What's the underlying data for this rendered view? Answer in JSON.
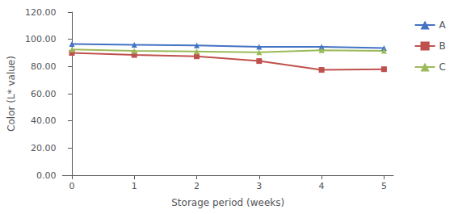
{
  "chart_data": {
    "type": "line",
    "xlabel": "Storage period (weeks)",
    "ylabel": "Color (L* value)",
    "x": [
      0,
      1,
      2,
      3,
      4,
      5
    ],
    "series": [
      {
        "name": "A",
        "color": "#4472C4",
        "marker": "triangle",
        "values": [
          96.5,
          96.0,
          95.5,
          94.5,
          94.5,
          93.5
        ]
      },
      {
        "name": "B",
        "color": "#C0504D",
        "marker": "square",
        "values": [
          90.0,
          88.5,
          87.5,
          84.0,
          77.5,
          78.0
        ]
      },
      {
        "name": "C",
        "color": "#9BBB59",
        "marker": "triangle",
        "values": [
          92.5,
          91.5,
          91.0,
          90.5,
          92.0,
          91.5
        ]
      }
    ],
    "xlim": [
      -0.15,
      5.15
    ],
    "xticks": [
      0,
      1,
      2,
      3,
      4,
      5
    ],
    "ylim": [
      0,
      120
    ],
    "yticks": [
      {
        "value": 0,
        "label": "0.00"
      },
      {
        "value": 20,
        "label": "20.00"
      },
      {
        "value": 40,
        "label": "40.00"
      },
      {
        "value": 60,
        "label": "60.00"
      },
      {
        "value": 80,
        "label": "80.00"
      },
      {
        "value": 100,
        "label": "100.00"
      },
      {
        "value": 120,
        "label": "120.00"
      }
    ],
    "grid": false,
    "legend": "right"
  }
}
